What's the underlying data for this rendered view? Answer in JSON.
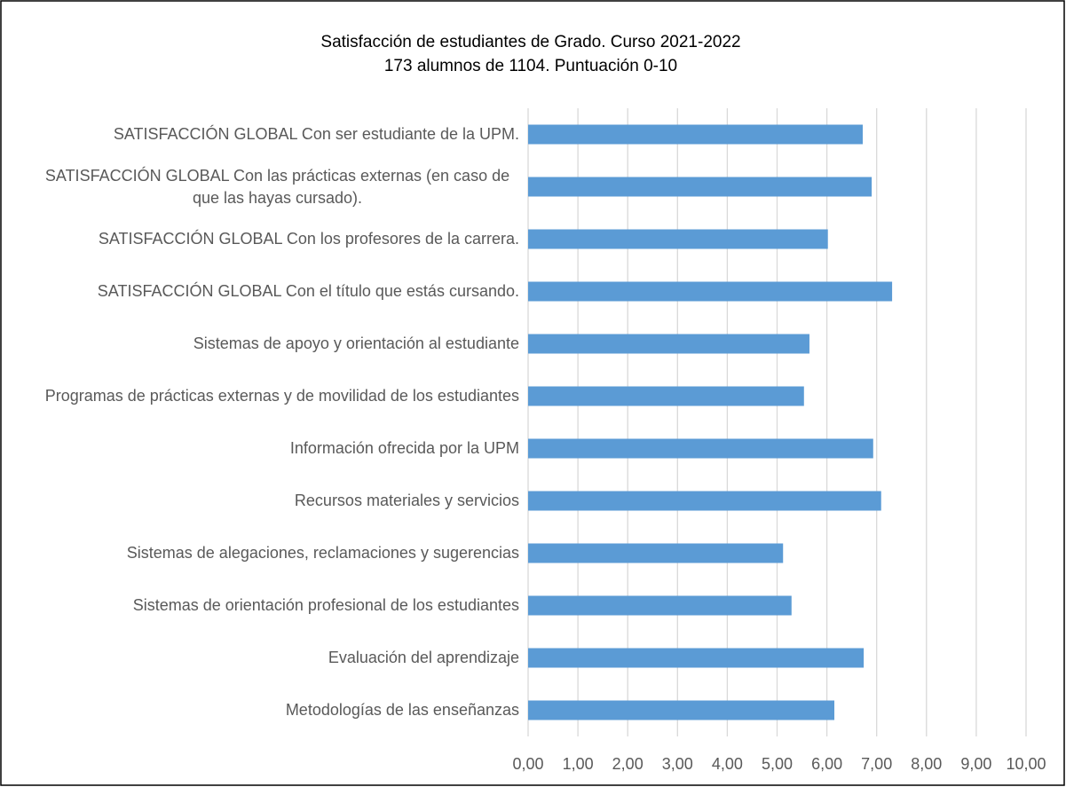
{
  "chart_data": {
    "type": "bar",
    "orientation": "horizontal",
    "title": "Satisfacción de estudiantes de Grado. Curso 2021-2022",
    "subtitle": "173 alumnos de 1104. Puntuación 0-10",
    "categories": [
      "SATISFACCIÓN GLOBAL Con ser estudiante de la UPM.",
      "SATISFACCIÓN GLOBAL Con las prácticas externas (en caso de que las hayas cursado).",
      "SATISFACCIÓN GLOBAL Con los profesores de la carrera.",
      "SATISFACCIÓN GLOBAL Con el título que estás cursando.",
      "Sistemas de apoyo y orientación al estudiante",
      "Programas de prácticas externas y de movilidad de los estudiantes",
      "Información ofrecida por la UPM",
      "Recursos materiales y servicios",
      "Sistemas de alegaciones, reclamaciones y sugerencias",
      "Sistemas de orientación profesional de los estudiantes",
      "Evaluación del aprendizaje",
      "Metodologías de las enseñanzas"
    ],
    "values": [
      6.72,
      6.9,
      6.02,
      7.31,
      5.65,
      5.54,
      6.93,
      7.09,
      5.12,
      5.29,
      6.74,
      6.15
    ],
    "color": "#5b9bd5",
    "xlim": [
      0,
      10
    ],
    "xticks": [
      {
        "value": 0,
        "label": "0,00"
      },
      {
        "value": 1,
        "label": "1,00"
      },
      {
        "value": 2,
        "label": "2,00"
      },
      {
        "value": 3,
        "label": "3,00"
      },
      {
        "value": 4,
        "label": "4,00"
      },
      {
        "value": 5,
        "label": "5,00"
      },
      {
        "value": 6,
        "label": "6,00"
      },
      {
        "value": 7,
        "label": "7,00"
      },
      {
        "value": 8,
        "label": "8,00"
      },
      {
        "value": 9,
        "label": "9,00"
      },
      {
        "value": 10,
        "label": "10,00"
      }
    ],
    "grid": true
  }
}
